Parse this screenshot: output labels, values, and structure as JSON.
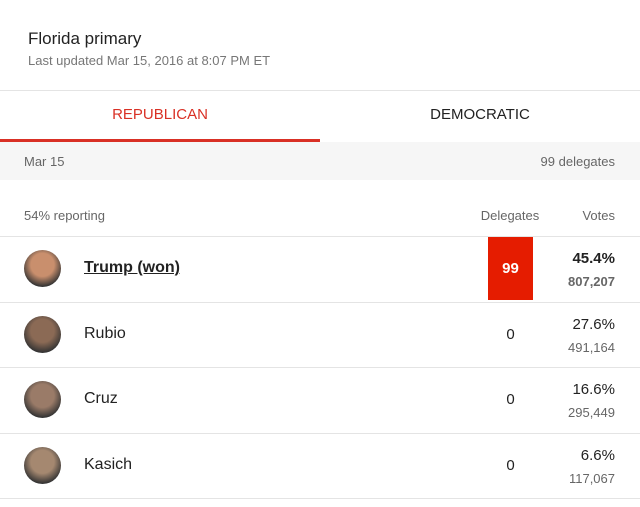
{
  "header": {
    "title": "Florida primary",
    "subtitle": "Last updated Mar 15, 2016 at 8:07 PM ET"
  },
  "tabs": [
    "REPUBLICAN",
    "DEMOCRATIC"
  ],
  "info": {
    "date": "Mar 15",
    "delegates": "99 delegates"
  },
  "table": {
    "reporting": "54% reporting",
    "columns": [
      "Delegates",
      "Votes"
    ],
    "rows": [
      {
        "name": "Trump (won)",
        "delegates": "99",
        "percent": "45.4%",
        "votes": "807,207",
        "winner": true
      },
      {
        "name": "Rubio",
        "delegates": "0",
        "percent": "27.6%",
        "votes": "491,164",
        "winner": false
      },
      {
        "name": "Cruz",
        "delegates": "0",
        "percent": "16.6%",
        "votes": "295,449",
        "winner": false
      },
      {
        "name": "Kasich",
        "delegates": "0",
        "percent": "6.6%",
        "votes": "117,067",
        "winner": false
      }
    ]
  }
}
